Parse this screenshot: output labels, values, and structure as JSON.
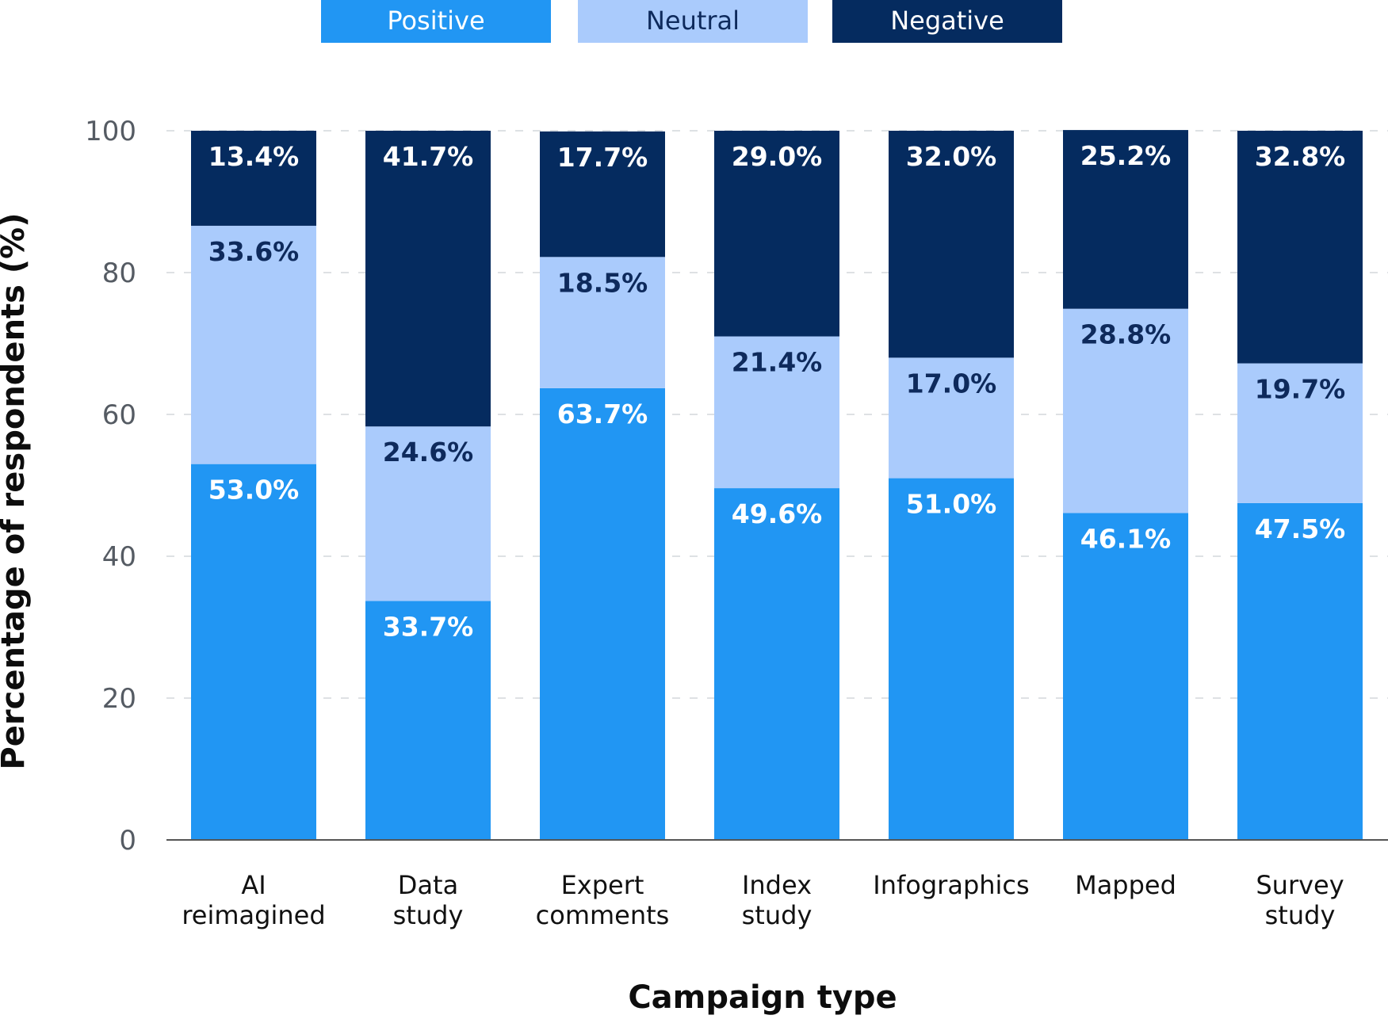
{
  "chart_data": {
    "type": "bar",
    "stacked": true,
    "title": "",
    "xlabel": "Campaign type",
    "ylabel": "Percentage of respondents (%)",
    "ylim": [
      0,
      100
    ],
    "yticks": [
      0,
      20,
      40,
      60,
      80,
      100
    ],
    "grid": "horizontal dashed",
    "legend_position": "top",
    "categories": [
      [
        "AI",
        "reimagined"
      ],
      [
        "Data",
        "study"
      ],
      [
        "Expert",
        "comments"
      ],
      [
        "Index",
        "study"
      ],
      [
        "Infographics"
      ],
      [
        "Mapped"
      ],
      [
        "Survey",
        "study"
      ]
    ],
    "series": [
      {
        "name": "Positive",
        "color": "#2196f3",
        "label_color": "#ffffff",
        "values": [
          53.0,
          33.7,
          63.7,
          49.6,
          51.0,
          46.1,
          47.5
        ],
        "labels": [
          "53.0%",
          "33.7%",
          "63.7%",
          "49.6%",
          "51.0%",
          "46.1%",
          "47.5%"
        ]
      },
      {
        "name": "Neutral",
        "color": "#aacbfc",
        "label_color": "#0e2a5c",
        "values": [
          33.6,
          24.6,
          18.5,
          21.4,
          17.0,
          28.8,
          19.7
        ],
        "labels": [
          "33.6%",
          "24.6%",
          "18.5%",
          "21.4%",
          "17.0%",
          "28.8%",
          "19.7%"
        ]
      },
      {
        "name": "Negative",
        "color": "#052b5f",
        "label_color": "#ffffff",
        "values": [
          13.4,
          41.7,
          17.7,
          29.0,
          32.0,
          25.2,
          32.8
        ],
        "labels": [
          "13.4%",
          "41.7%",
          "17.7%",
          "29.0%",
          "32.0%",
          "25.2%",
          "32.8%"
        ]
      }
    ]
  }
}
